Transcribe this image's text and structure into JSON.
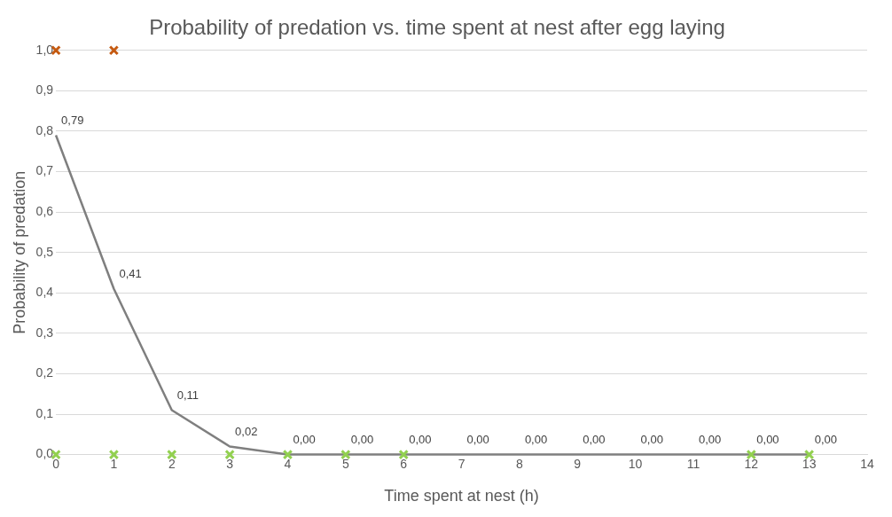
{
  "chart_data": {
    "type": "line",
    "title": "Probability of predation vs. time spent at nest after egg laying",
    "xlabel": "Time spent at nest (h)",
    "ylabel": "Probability of predation",
    "series": [
      {
        "type": "line",
        "color": "#7f7f7f",
        "marker": "none",
        "x": [
          0,
          1,
          2,
          3,
          4,
          5,
          6,
          7,
          8,
          9,
          10,
          11,
          12,
          13
        ],
        "values": [
          0.79,
          0.41,
          0.11,
          0.02,
          0,
          0,
          0,
          0,
          0,
          0,
          0,
          0,
          0,
          0
        ],
        "value_labels": [
          "0,79",
          "0,41",
          "0,11",
          "0,02",
          "0,00",
          "0,00",
          "0,00",
          "0,00",
          "0,00",
          "0,00",
          "0,00",
          "0,00",
          "0,00",
          "0,00"
        ]
      },
      {
        "type": "scatter",
        "color": "#c55a11",
        "marker": "cross",
        "x": [
          0,
          1
        ],
        "values": [
          1,
          1
        ]
      },
      {
        "type": "scatter",
        "color": "#92d050",
        "marker": "cross",
        "x": [
          0,
          1,
          2,
          3,
          4,
          5,
          6,
          12,
          13
        ],
        "values": [
          0,
          0,
          0,
          0,
          0,
          0,
          0,
          0,
          0
        ]
      }
    ],
    "xlim": [
      0,
      14
    ],
    "xticks": [
      0,
      1,
      2,
      3,
      4,
      5,
      6,
      7,
      8,
      9,
      10,
      11,
      12,
      13,
      14
    ],
    "ylim": [
      0,
      1
    ],
    "yticks": [
      {
        "value": 0,
        "label": "0,0"
      },
      {
        "value": 0.1,
        "label": "0,1"
      },
      {
        "value": 0.2,
        "label": "0,2"
      },
      {
        "value": 0.3,
        "label": "0,3"
      },
      {
        "value": 0.4,
        "label": "0,4"
      },
      {
        "value": 0.5,
        "label": "0,5"
      },
      {
        "value": 0.6,
        "label": "0,6"
      },
      {
        "value": 0.7,
        "label": "0,7"
      },
      {
        "value": 0.8,
        "label": "0,8"
      },
      {
        "value": 0.9,
        "label": "0,9"
      },
      {
        "value": 1,
        "label": "1,0"
      }
    ],
    "grid": "y",
    "legend": false
  }
}
